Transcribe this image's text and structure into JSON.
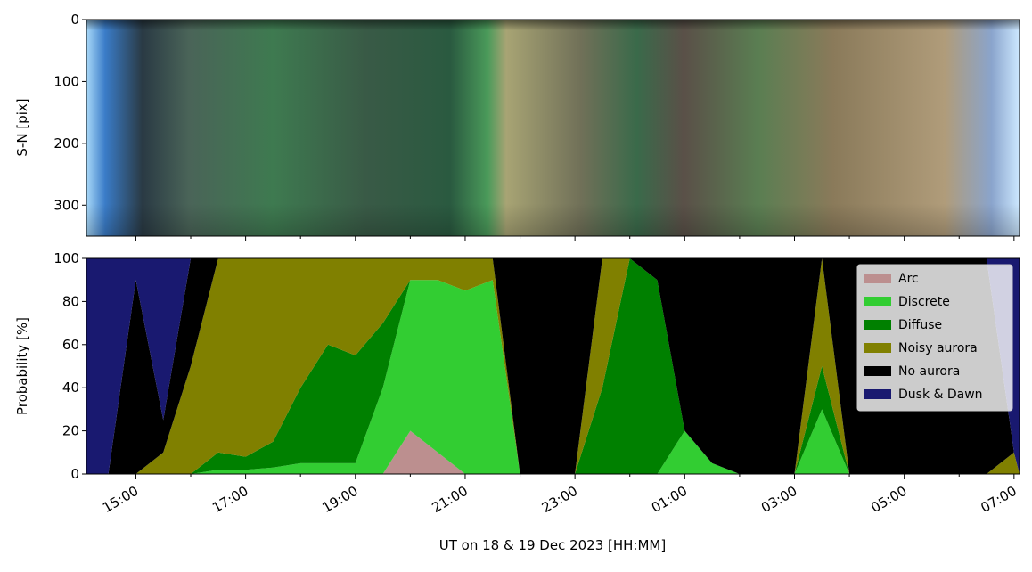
{
  "chart_data": [
    {
      "type": "image",
      "ylabel": "S-N [pix]",
      "ylim": [
        350,
        0
      ],
      "yticks": [
        0,
        100,
        200,
        300
      ]
    },
    {
      "type": "stacked_area",
      "xlabel": "UT on 18 & 19 Dec 2023 [HH:MM]",
      "ylabel": "Probability [%]",
      "xlim": [
        14.1,
        31.1
      ],
      "xticks": [
        {
          "value": 15,
          "label": "15:00"
        },
        {
          "value": 17,
          "label": "17:00"
        },
        {
          "value": 19,
          "label": "19:00"
        },
        {
          "value": 21,
          "label": "21:00"
        },
        {
          "value": 23,
          "label": "23:00"
        },
        {
          "value": 25,
          "label": "01:00"
        },
        {
          "value": 27,
          "label": "03:00"
        },
        {
          "value": 29,
          "label": "05:00"
        },
        {
          "value": 31,
          "label": "07:00"
        }
      ],
      "xminorticks": [
        16,
        18,
        20,
        22,
        24,
        26,
        28,
        30
      ],
      "ylim": [
        0,
        100
      ],
      "yticks": [
        0,
        20,
        40,
        60,
        80,
        100
      ],
      "legend": "upper right",
      "x": [
        14.1,
        14.5,
        15,
        15.5,
        16,
        16.5,
        17,
        17.5,
        18,
        18.5,
        19,
        19.5,
        20,
        20.5,
        21,
        21.5,
        22,
        22.5,
        23,
        23.5,
        24,
        24.5,
        25,
        25.5,
        26,
        26.5,
        27,
        27.5,
        28,
        28.5,
        29,
        29.5,
        30,
        30.5,
        31,
        31.1
      ],
      "series": [
        {
          "name": "Arc",
          "color": "#bc8f8f",
          "values": [
            0,
            0,
            0,
            0,
            0,
            0,
            0,
            0,
            0,
            0,
            0,
            0,
            20,
            10,
            0,
            0,
            0,
            0,
            0,
            0,
            0,
            0,
            0,
            0,
            0,
            0,
            0,
            0,
            0,
            0,
            0,
            0,
            0,
            0,
            0,
            0
          ]
        },
        {
          "name": "Discrete",
          "color": "#32cd32",
          "values": [
            0,
            0,
            0,
            0,
            0,
            2,
            2,
            3,
            5,
            5,
            5,
            40,
            70,
            80,
            85,
            90,
            0,
            0,
            0,
            0,
            0,
            0,
            20,
            5,
            0,
            0,
            0,
            30,
            0,
            0,
            0,
            0,
            0,
            0,
            0,
            0
          ]
        },
        {
          "name": "Diffuse",
          "color": "#008000",
          "values": [
            0,
            0,
            0,
            0,
            0,
            8,
            6,
            12,
            35,
            55,
            50,
            30,
            0,
            0,
            0,
            0,
            0,
            0,
            0,
            40,
            100,
            90,
            0,
            0,
            0,
            0,
            0,
            20,
            0,
            0,
            0,
            0,
            0,
            0,
            0,
            0
          ]
        },
        {
          "name": "Noisy aurora",
          "color": "#808000",
          "values": [
            0,
            0,
            0,
            10,
            50,
            90,
            92,
            85,
            60,
            40,
            45,
            30,
            10,
            10,
            15,
            10,
            0,
            0,
            0,
            60,
            0,
            0,
            0,
            0,
            0,
            0,
            0,
            50,
            0,
            0,
            0,
            0,
            0,
            0,
            10,
            0
          ]
        },
        {
          "name": "No aurora",
          "color": "#000000",
          "values": [
            0,
            0,
            90,
            15,
            50,
            0,
            0,
            0,
            0,
            0,
            0,
            0,
            0,
            0,
            0,
            0,
            100,
            100,
            100,
            0,
            0,
            10,
            80,
            95,
            100,
            100,
            100,
            0,
            100,
            100,
            100,
            100,
            100,
            100,
            0,
            0
          ]
        },
        {
          "name": "Dusk & Dawn",
          "color": "#191970",
          "values": [
            100,
            100,
            10,
            75,
            0,
            0,
            0,
            0,
            0,
            0,
            0,
            0,
            0,
            0,
            0,
            0,
            0,
            0,
            0,
            0,
            0,
            0,
            0,
            0,
            0,
            0,
            0,
            0,
            0,
            0,
            0,
            0,
            0,
            0,
            90,
            100
          ]
        }
      ]
    }
  ]
}
